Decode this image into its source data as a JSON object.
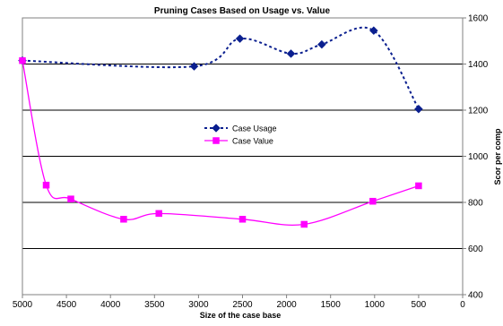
{
  "chart_data": {
    "type": "line",
    "title": "Pruning Cases Based on Usage vs. Value",
    "xlabel": "Size of the case base",
    "ylabel": "Scor per comp",
    "x_reversed": true,
    "xlim": [
      0,
      5000
    ],
    "ylim": [
      400,
      1600
    ],
    "x_ticks": [
      5000,
      4500,
      4000,
      3500,
      3000,
      2500,
      2000,
      1500,
      1000,
      500,
      0
    ],
    "y_ticks": [
      400,
      600,
      800,
      1000,
      1200,
      1400,
      1600
    ],
    "grid": {
      "horizontal": true,
      "vertical": false
    },
    "legend_position": "center",
    "series": [
      {
        "name": "Case Usage",
        "color": "#0a1f8f",
        "line_style": "dashed",
        "marker": "diamond",
        "points": [
          {
            "x": 5000,
            "y": 1415
          },
          {
            "x": 3050,
            "y": 1390
          },
          {
            "x": 2530,
            "y": 1510
          },
          {
            "x": 1950,
            "y": 1445
          },
          {
            "x": 1600,
            "y": 1485
          },
          {
            "x": 1010,
            "y": 1545
          },
          {
            "x": 500,
            "y": 1205
          }
        ]
      },
      {
        "name": "Case Value",
        "color": "#ff00ff",
        "line_style": "solid",
        "marker": "square",
        "points": [
          {
            "x": 5000,
            "y": 1415
          },
          {
            "x": 4730,
            "y": 875
          },
          {
            "x": 4450,
            "y": 815
          },
          {
            "x": 3850,
            "y": 727
          },
          {
            "x": 3450,
            "y": 752
          },
          {
            "x": 2500,
            "y": 727
          },
          {
            "x": 1800,
            "y": 705
          },
          {
            "x": 1020,
            "y": 805
          },
          {
            "x": 500,
            "y": 872
          }
        ]
      }
    ]
  }
}
